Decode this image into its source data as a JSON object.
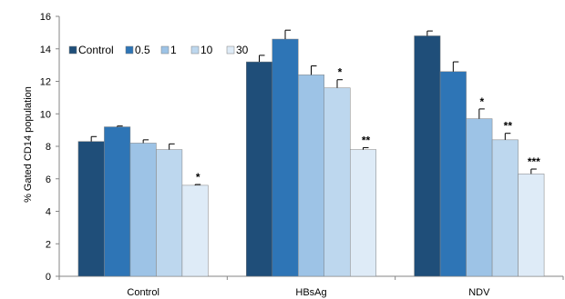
{
  "chart_data": {
    "type": "bar",
    "title": "",
    "xlabel": "",
    "ylabel": "% Gated CD14 population",
    "ylim": [
      0,
      16
    ],
    "yticks": [
      "0",
      "2",
      "4",
      "6",
      "8",
      "10",
      "12",
      "14",
      "16"
    ],
    "grid": false,
    "legend_position": "top-left",
    "categories": [
      "Control",
      "HBsAg",
      "NDV"
    ],
    "series": [
      {
        "name": "Control",
        "color": "#1f4e79",
        "values": [
          8.3,
          13.2,
          14.8
        ],
        "errors": [
          0.3,
          0.4,
          0.3
        ],
        "annotations": [
          "",
          "",
          ""
        ]
      },
      {
        "name": "0.5",
        "color": "#2e75b6",
        "values": [
          9.2,
          14.6,
          12.6
        ],
        "errors": [
          0.05,
          0.55,
          0.6
        ],
        "annotations": [
          "",
          "",
          ""
        ]
      },
      {
        "name": "1",
        "color": "#9dc3e6",
        "values": [
          8.2,
          12.4,
          9.7
        ],
        "errors": [
          0.2,
          0.55,
          0.6
        ],
        "annotations": [
          "",
          "",
          "*"
        ]
      },
      {
        "name": "10",
        "color": "#bdd7ee",
        "values": [
          7.8,
          11.6,
          8.4
        ],
        "errors": [
          0.35,
          0.5,
          0.4
        ],
        "annotations": [
          "",
          "*",
          "**"
        ]
      },
      {
        "name": "30",
        "color": "#deebf7",
        "values": [
          5.6,
          7.8,
          6.3
        ],
        "errors": [
          0.05,
          0.12,
          0.3
        ],
        "annotations": [
          "*",
          "**",
          "***"
        ]
      }
    ]
  }
}
